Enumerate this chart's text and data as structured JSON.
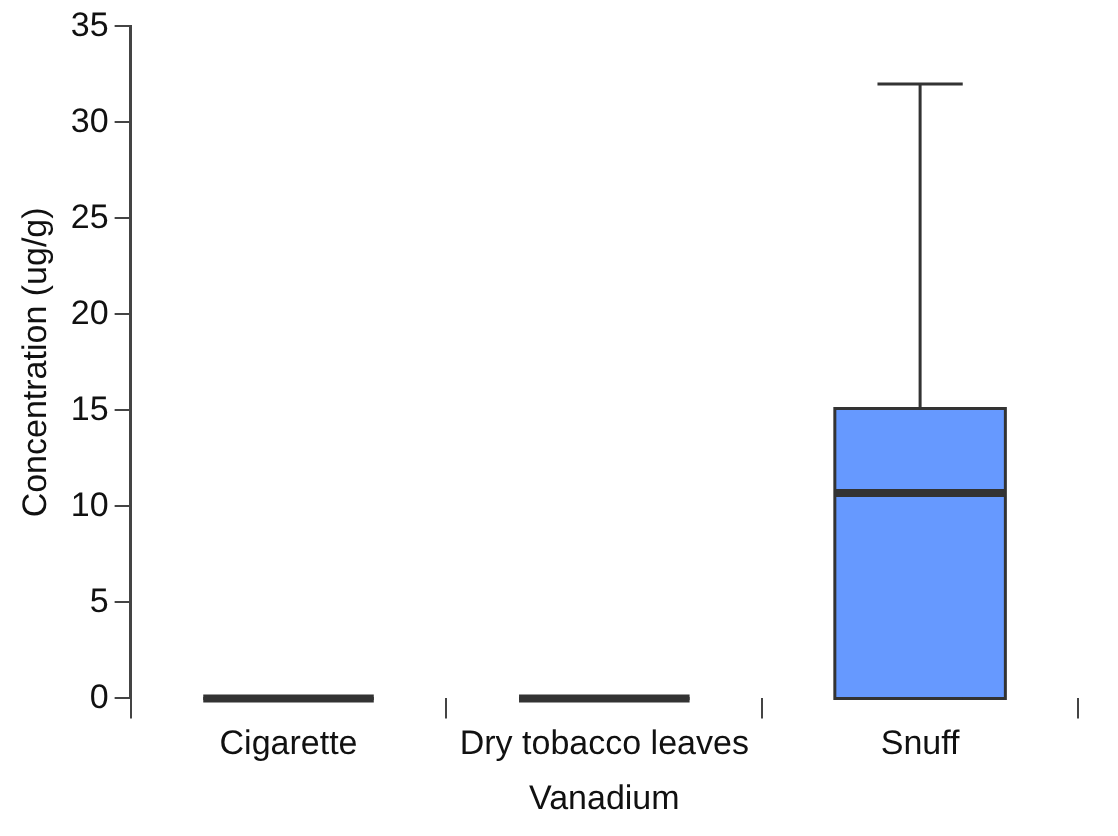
{
  "chart_data": {
    "type": "box",
    "xlabel": "Vanadium",
    "ylabel": "Concentration (ug/g)",
    "categories": [
      "Cigarette",
      "Dry tobacco leaves",
      "Snuff"
    ],
    "boxes": [
      {
        "low": 0,
        "q1": 0,
        "median": 0,
        "q3": 0,
        "high": 0
      },
      {
        "low": 0,
        "q1": 0,
        "median": 0,
        "q3": 0,
        "high": 0
      },
      {
        "low": 0,
        "q1": 0,
        "median": 10.7,
        "q3": 15.1,
        "high": 32
      }
    ],
    "colors": [
      "#333333",
      "#333333",
      "#6699ff"
    ],
    "ylim": [
      0,
      35
    ],
    "yticks": [
      0,
      5,
      10,
      15,
      20,
      25,
      30,
      35
    ],
    "legend": false
  }
}
